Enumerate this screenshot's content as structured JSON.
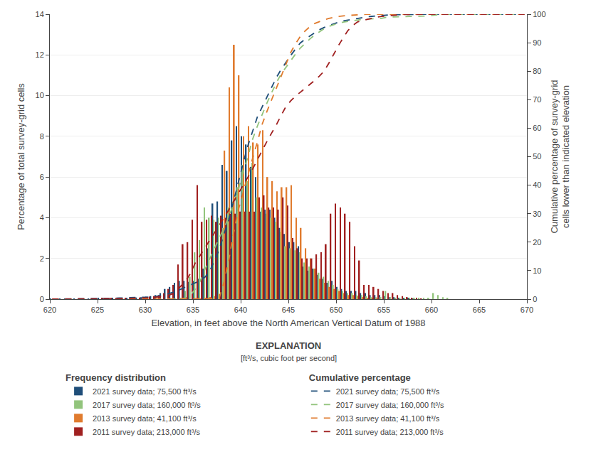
{
  "chart_data": {
    "type": "bar",
    "xlabel": "Elevation, in feet above the North American Vertical Datum of 1988",
    "ylabel": "Percentage of total survey-grid cells",
    "y2label": "Cumulative percentage of survey-grid cells lower than indicated elevation",
    "xlim": [
      620,
      670
    ],
    "xticks": [
      620,
      625,
      630,
      635,
      640,
      645,
      650,
      655,
      660,
      665,
      670
    ],
    "ylim": [
      0,
      14
    ],
    "yticks": [
      0,
      2,
      4,
      6,
      8,
      10,
      12,
      14
    ],
    "y2lim": [
      0,
      100
    ],
    "y2ticks": [
      0,
      10,
      20,
      30,
      40,
      50,
      60,
      70,
      80,
      90,
      100
    ],
    "grid": true,
    "legend": "bottom",
    "annotations": [
      "EXPLANATION",
      "[ft³/s, cubic foot per second]"
    ],
    "legend_titles": {
      "bar": "Frequency distribution",
      "line": "Cumulative percentage"
    },
    "x": [
      620.25,
      620.75,
      621.25,
      621.75,
      622.25,
      622.75,
      623.25,
      623.75,
      624.25,
      624.75,
      625.25,
      625.75,
      626.25,
      626.75,
      627.25,
      627.75,
      628.25,
      628.75,
      629.25,
      629.75,
      630.25,
      630.75,
      631.25,
      631.75,
      632.25,
      632.75,
      633.25,
      633.75,
      634.25,
      634.75,
      635.25,
      635.75,
      636.25,
      636.75,
      637.25,
      637.75,
      638.25,
      638.75,
      639.25,
      639.75,
      640.25,
      640.75,
      641.25,
      641.75,
      642.25,
      642.75,
      643.25,
      643.75,
      644.25,
      644.75,
      645.25,
      645.75,
      646.25,
      646.75,
      647.25,
      647.75,
      648.25,
      648.75,
      649.25,
      649.75,
      650.25,
      650.75,
      651.25,
      651.75,
      652.25,
      652.75,
      653.25,
      653.75,
      654.25,
      654.75,
      655.25,
      655.75,
      656.25,
      656.75,
      657.25,
      657.75,
      658.25,
      658.75,
      659.25,
      659.75,
      660.25,
      660.75,
      661.25,
      661.75,
      662.25,
      662.75,
      663.25,
      663.75,
      664.25,
      664.75,
      665.25,
      665.75,
      666.25,
      666.75,
      667.25,
      667.75,
      668.25,
      668.75,
      669.25,
      669.75
    ],
    "series": [
      {
        "name": "2021 survey data; 75,500 ft³/s",
        "type": "bar",
        "color": "#1f4e79",
        "values": [
          0.02,
          0.02,
          0.02,
          0.02,
          0.02,
          0.02,
          0.02,
          0.02,
          0.02,
          0.02,
          0.05,
          0.05,
          0.05,
          0.05,
          0.05,
          0.05,
          0.05,
          0.05,
          0.08,
          0.1,
          0.12,
          0.15,
          0.2,
          0.3,
          0.5,
          0.6,
          0.8,
          0.9,
          0.9,
          0.85,
          0.9,
          1.0,
          1.5,
          2.5,
          4.7,
          4.8,
          6.6,
          6.3,
          7.8,
          8.5,
          8.0,
          7.6,
          6.5,
          6.0,
          4.3,
          4.4,
          4.4,
          4.0,
          3.5,
          3.2,
          2.8,
          2.8,
          2.6,
          1.6,
          1.4,
          1.5,
          1.2,
          1.0,
          0.8,
          0.9,
          0.6,
          0.5,
          0.4,
          0.4,
          0.4,
          0.3,
          0.3,
          0.2,
          0.2,
          0.2,
          0.15,
          0.1,
          0.1,
          0.05,
          0.05,
          0.05,
          0.02,
          0.0,
          0.0,
          0.0,
          0.0,
          0.0,
          0.0,
          0.0,
          0.0,
          0.0,
          0.0,
          0.0,
          0.0,
          0.0,
          0.0,
          0.0,
          0.0,
          0.0,
          0.0,
          0.0,
          0.0,
          0.0,
          0.0,
          0.0
        ]
      },
      {
        "name": "2017 survey data; 160,000 ft³/s",
        "type": "bar",
        "color": "#92c47c",
        "values": [
          0.0,
          0.0,
          0.0,
          0.0,
          0.0,
          0.0,
          0.0,
          0.0,
          0.0,
          0.0,
          0.0,
          0.0,
          0.0,
          0.0,
          0.0,
          0.0,
          0.0,
          0.0,
          0.0,
          0.0,
          0.0,
          0.0,
          0.0,
          0.0,
          0.0,
          0.0,
          0.02,
          0.05,
          0.4,
          1.1,
          2.3,
          2.9,
          4.5,
          4.0,
          3.9,
          4.0,
          3.5,
          4.5,
          4.8,
          5.5,
          6.6,
          5.8,
          6.7,
          5.0,
          4.5,
          4.2,
          4.0,
          3.8,
          3.3,
          2.6,
          2.5,
          2.4,
          2.3,
          1.8,
          1.6,
          1.5,
          1.3,
          1.1,
          0.9,
          0.7,
          0.5,
          0.4,
          0.3,
          0.3,
          0.2,
          0.2,
          0.15,
          0.1,
          0.1,
          0.1,
          0.4,
          0.1,
          0.05,
          0.05,
          0.05,
          0.05,
          0.05,
          0.05,
          0.05,
          0.05,
          0.3,
          0.2,
          0.1,
          0.05,
          0.0,
          0.0,
          0.0,
          0.0,
          0.0,
          0.0,
          0.0,
          0.0,
          0.0,
          0.0,
          0.0,
          0.0,
          0.0,
          0.0,
          0.0,
          0.0
        ]
      },
      {
        "name": "2013 survey data; 41,100 ft³/s",
        "type": "bar",
        "color": "#e07b2e",
        "values": [
          0.0,
          0.0,
          0.0,
          0.0,
          0.0,
          0.0,
          0.0,
          0.0,
          0.0,
          0.0,
          0.0,
          0.0,
          0.0,
          0.0,
          0.0,
          0.0,
          0.0,
          0.0,
          0.0,
          0.0,
          0.0,
          0.0,
          0.0,
          0.0,
          0.0,
          0.0,
          0.0,
          0.0,
          0.0,
          0.0,
          0.0,
          0.02,
          0.05,
          0.1,
          0.15,
          0.25,
          7.3,
          10.4,
          12.5,
          11.0,
          8.0,
          8.5,
          7.7,
          7.6,
          8.3,
          6.0,
          5.8,
          5.3,
          5.5,
          5.5,
          5.6,
          4.0,
          3.5,
          2.5,
          2.0,
          1.5,
          1.0,
          0.8,
          0.6,
          0.5,
          0.4,
          0.3,
          0.2,
          0.2,
          0.15,
          0.1,
          0.05,
          0.05,
          0.02,
          0.0,
          0.0,
          0.0,
          0.0,
          0.0,
          0.0,
          0.0,
          0.0,
          0.0,
          0.0,
          0.0,
          0.0,
          0.0,
          0.0,
          0.0,
          0.0,
          0.0,
          0.0,
          0.0,
          0.0,
          0.0,
          0.0,
          0.0,
          0.0,
          0.0,
          0.0,
          0.0,
          0.0,
          0.0,
          0.0,
          0.0
        ]
      },
      {
        "name": "2011 survey data; 213,000 ft³/s",
        "type": "bar",
        "color": "#a02020",
        "values": [
          0.0,
          0.0,
          0.0,
          0.0,
          0.0,
          0.0,
          0.0,
          0.0,
          0.0,
          0.0,
          0.05,
          0.05,
          0.05,
          0.05,
          0.05,
          0.05,
          0.05,
          0.05,
          0.08,
          0.1,
          0.12,
          0.15,
          0.2,
          0.3,
          0.5,
          0.7,
          1.7,
          2.7,
          2.8,
          3.9,
          5.6,
          3.8,
          3.9,
          4.1,
          3.8,
          4.1,
          4.0,
          4.2,
          4.2,
          4.3,
          4.3,
          4.3,
          4.3,
          5.0,
          5.1,
          4.5,
          4.5,
          4.4,
          5.0,
          4.6,
          3.0,
          2.5,
          2.0,
          2.0,
          2.0,
          2.2,
          2.3,
          2.7,
          4.2,
          4.7,
          4.5,
          4.2,
          3.8,
          2.6,
          1.9,
          0.7,
          0.7,
          0.6,
          0.5,
          0.4,
          0.3,
          0.3,
          0.2,
          0.15,
          0.1,
          0.05,
          0.05,
          0.02,
          0.0,
          0.0,
          0.0,
          0.0,
          0.0,
          0.0,
          0.0,
          0.0,
          0.0,
          0.0,
          0.0,
          0.0,
          0.0,
          0.0,
          0.0,
          0.0,
          0.0,
          0.0,
          0.0,
          0.0,
          0.0,
          0.0
        ]
      },
      {
        "name": "2021 survey data; 75,500 ft³/s",
        "type": "line",
        "axis": "y2",
        "line_style": "dashed",
        "color": "#1f4e79",
        "values": [
          0.02,
          0.03,
          0.05,
          0.06,
          0.08,
          0.1,
          0.11,
          0.13,
          0.15,
          0.16,
          0.2,
          0.24,
          0.28,
          0.32,
          0.37,
          0.41,
          0.45,
          0.49,
          0.55,
          0.63,
          0.73,
          0.85,
          1.01,
          1.26,
          1.66,
          2.15,
          2.8,
          3.53,
          4.26,
          4.95,
          5.68,
          6.49,
          7.71,
          9.74,
          13.55,
          17.45,
          22.8,
          27.92,
          34.25,
          41.15,
          47.64,
          53.81,
          59.08,
          63.95,
          67.44,
          71.01,
          74.58,
          77.83,
          80.67,
          83.27,
          85.54,
          87.81,
          89.92,
          91.22,
          92.36,
          93.57,
          94.55,
          95.36,
          96.01,
          96.74,
          97.22,
          97.63,
          97.95,
          98.28,
          98.6,
          98.85,
          99.09,
          99.25,
          99.42,
          99.58,
          99.7,
          99.78,
          99.86,
          99.9,
          99.94,
          99.98,
          100,
          100,
          100,
          100,
          100,
          100,
          100,
          100,
          100,
          100,
          100,
          100,
          100,
          100,
          100,
          100,
          100,
          100,
          100,
          100,
          100,
          100,
          100,
          100
        ]
      },
      {
        "name": "2017 survey data; 160,000 ft³/s",
        "type": "line",
        "axis": "y2",
        "line_style": "dashed",
        "color": "#92c47c",
        "values": [
          0,
          0,
          0,
          0,
          0,
          0,
          0,
          0,
          0,
          0,
          0,
          0,
          0,
          0,
          0,
          0,
          0,
          0,
          0,
          0,
          0,
          0,
          0,
          0,
          0,
          0,
          0.02,
          0.06,
          0.44,
          1.45,
          3.58,
          6.27,
          10.44,
          14.14,
          17.75,
          21.46,
          24.7,
          28.87,
          33.31,
          38.41,
          44.52,
          49.89,
          56.1,
          60.73,
          64.9,
          68.79,
          72.49,
          76.01,
          79.07,
          81.48,
          83.79,
          86.01,
          88.14,
          89.81,
          91.29,
          92.68,
          93.89,
          94.91,
          95.74,
          96.39,
          96.85,
          97.22,
          97.5,
          97.78,
          97.96,
          98.15,
          98.29,
          98.38,
          98.47,
          98.56,
          98.93,
          99.03,
          99.07,
          99.12,
          99.17,
          99.21,
          99.26,
          99.31,
          99.35,
          99.4,
          99.68,
          99.86,
          99.95,
          100,
          100,
          100,
          100,
          100,
          100,
          100,
          100,
          100,
          100,
          100,
          100,
          100,
          100,
          100,
          100,
          100
        ]
      },
      {
        "name": "2013 survey data; 41,100 ft³/s",
        "type": "line",
        "axis": "y2",
        "line_style": "dashed",
        "color": "#e07b2e",
        "values": [
          0,
          0,
          0,
          0,
          0,
          0,
          0,
          0,
          0,
          0,
          0,
          0,
          0,
          0,
          0,
          0,
          0,
          0,
          0,
          0,
          0,
          0,
          0,
          0,
          0,
          0,
          0,
          0,
          0,
          0,
          0,
          0.01,
          0.05,
          0.13,
          0.24,
          0.43,
          5.9,
          13.69,
          23.06,
          31.3,
          37.3,
          43.67,
          49.44,
          55.13,
          61.35,
          65.85,
          70.2,
          74.17,
          78.29,
          82.41,
          86.61,
          89.61,
          92.23,
          94.1,
          95.6,
          96.73,
          97.47,
          98.07,
          98.52,
          98.9,
          99.2,
          99.42,
          99.57,
          99.72,
          99.84,
          99.91,
          99.95,
          99.99,
          100,
          100,
          100,
          100,
          100,
          100,
          100,
          100,
          100,
          100,
          100,
          100,
          100,
          100,
          100,
          100,
          100,
          100,
          100,
          100,
          100,
          100,
          100,
          100,
          100,
          100,
          100,
          100,
          100,
          100,
          100,
          100
        ]
      },
      {
        "name": "2011 survey data; 213,000 ft³/s",
        "type": "line",
        "axis": "y2",
        "line_style": "dashed",
        "color": "#a02020",
        "values": [
          0,
          0,
          0,
          0,
          0,
          0,
          0,
          0,
          0,
          0,
          0.03,
          0.07,
          0.1,
          0.13,
          0.17,
          0.2,
          0.23,
          0.27,
          0.32,
          0.39,
          0.47,
          0.57,
          0.7,
          0.9,
          1.23,
          1.7,
          2.83,
          4.62,
          6.49,
          9.08,
          12.81,
          15.33,
          17.93,
          20.66,
          23.18,
          25.91,
          28.57,
          31.37,
          34.16,
          37.02,
          39.88,
          42.74,
          45.6,
          48.93,
          52.32,
          55.32,
          58.31,
          61.24,
          64.56,
          67.62,
          69.62,
          71.28,
          72.61,
          73.94,
          75.27,
          76.74,
          78.27,
          80.06,
          82.86,
          85.98,
          88.98,
          91.77,
          94.3,
          96.03,
          97.29,
          97.76,
          98.22,
          98.62,
          98.96,
          99.22,
          99.42,
          99.62,
          99.75,
          99.85,
          99.92,
          99.95,
          99.99,
          100,
          100,
          100,
          100,
          100,
          100,
          100,
          100,
          100,
          100,
          100,
          100,
          100,
          100,
          100,
          100,
          100,
          100,
          100,
          100,
          100,
          100,
          100
        ]
      }
    ]
  }
}
